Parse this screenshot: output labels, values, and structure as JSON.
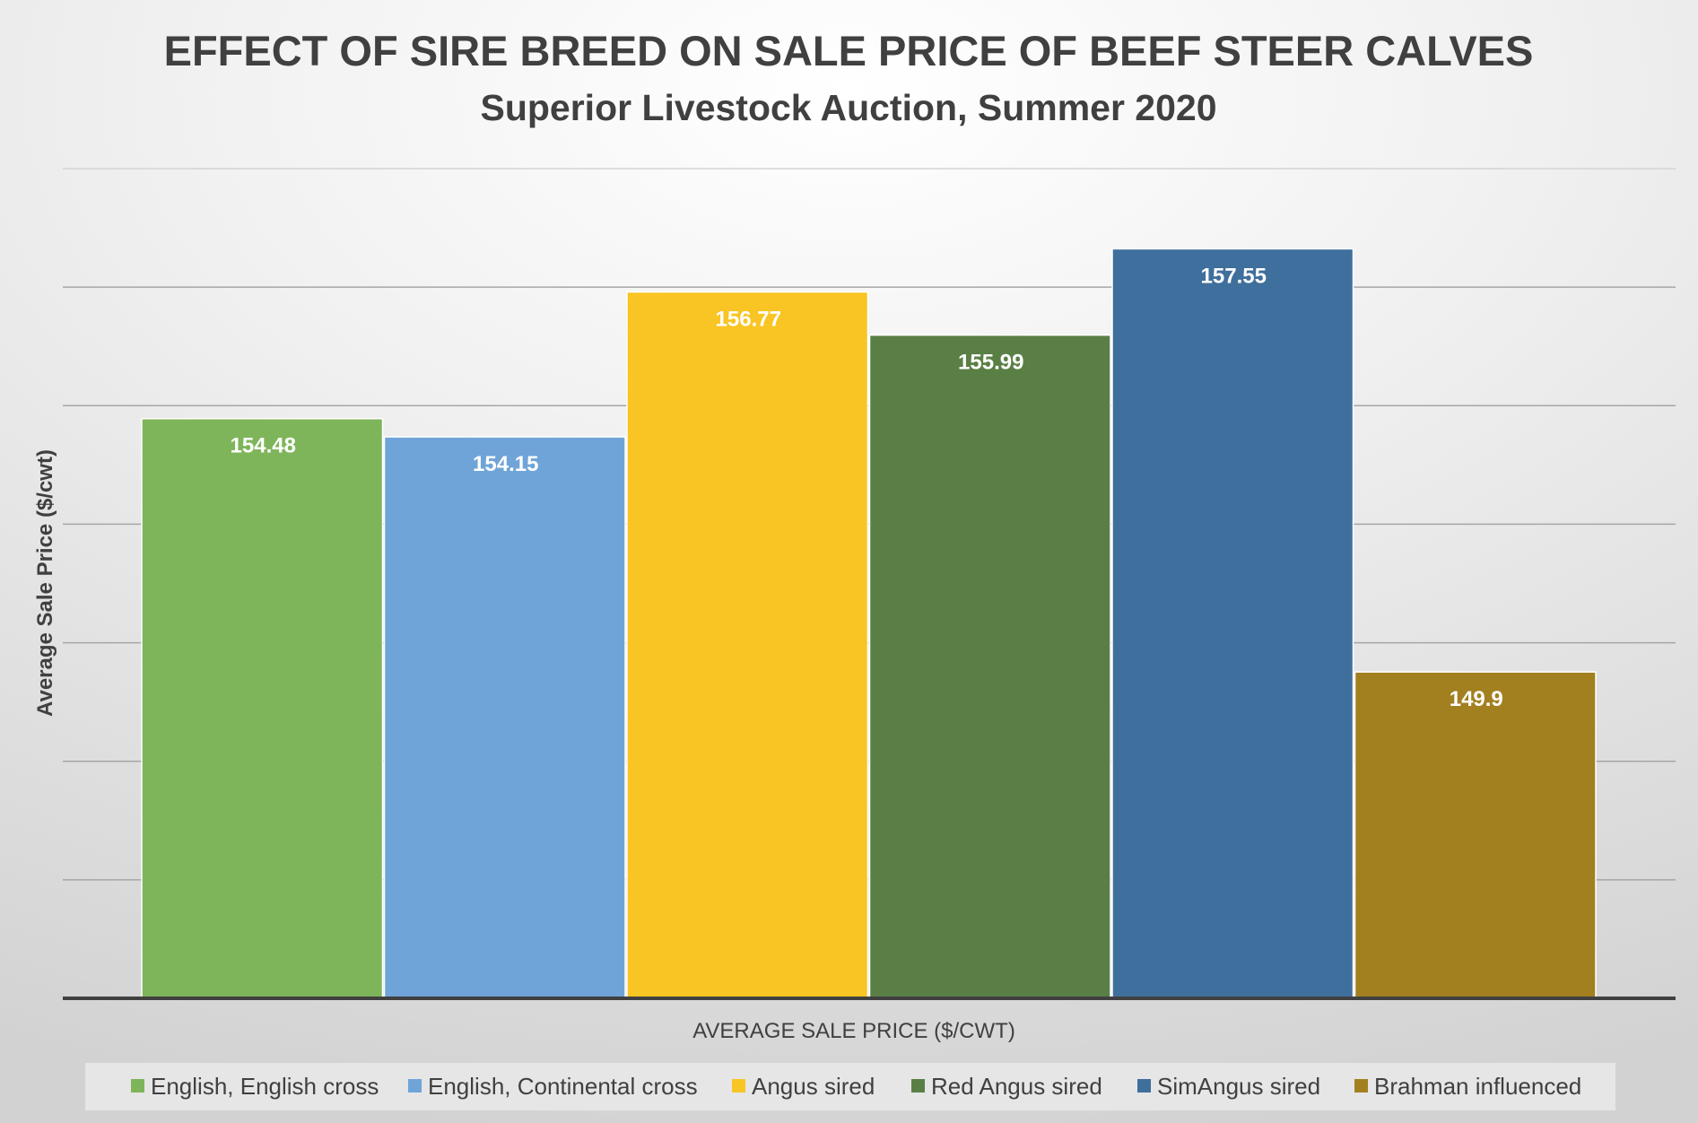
{
  "chart_data": {
    "type": "bar",
    "title": "EFFECT OF SIRE BREED ON SALE PRICE OF BEEF STEER CALVES",
    "subtitle": "Superior Livestock Auction, Summer 2020",
    "xlabel": "AVERAGE SALE PRICE ($/CWT)",
    "ylabel": "Average Sale Price ($/cwt)",
    "ylim": [
      144,
      159
    ],
    "grid": true,
    "legend_position": "bottom",
    "series": [
      {
        "name": "English, English cross",
        "value": 154.48,
        "label": "154.48",
        "color": "#7eb55a"
      },
      {
        "name": "English, Continental cross",
        "value": 154.15,
        "label": "154.15",
        "color": "#6fa4d8"
      },
      {
        "name": "Angus sired",
        "value": 156.77,
        "label": "156.77",
        "color": "#f9c524"
      },
      {
        "name": "Red Angus sired",
        "value": 155.99,
        "label": "155.99",
        "color": "#5a7f45"
      },
      {
        "name": "SimAngus sired",
        "value": 157.55,
        "label": "157.55",
        "color": "#3f6f9c"
      },
      {
        "name": "Brahman influenced",
        "value": 149.9,
        "label": "149.9",
        "color": "#a2801f"
      }
    ]
  }
}
